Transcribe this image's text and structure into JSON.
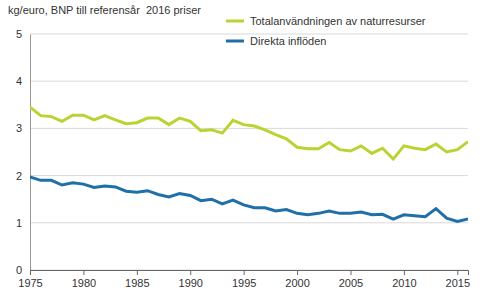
{
  "chart_data": {
    "type": "line",
    "ylabel": "kg/euro, BNP till referensår  2016 priser",
    "x": [
      1975,
      1976,
      1977,
      1978,
      1979,
      1980,
      1981,
      1982,
      1983,
      1984,
      1985,
      1986,
      1987,
      1988,
      1989,
      1990,
      1991,
      1992,
      1993,
      1994,
      1995,
      1996,
      1997,
      1998,
      1999,
      2000,
      2001,
      2002,
      2003,
      2004,
      2005,
      2006,
      2007,
      2008,
      2009,
      2010,
      2011,
      2012,
      2013,
      2014,
      2015,
      2016
    ],
    "series": [
      {
        "name": "Totalanvändningen av naturresurser",
        "color": "#b8d433",
        "values": [
          3.45,
          3.27,
          3.25,
          3.15,
          3.28,
          3.28,
          3.18,
          3.27,
          3.18,
          3.1,
          3.12,
          3.22,
          3.22,
          3.08,
          3.22,
          3.15,
          2.95,
          2.97,
          2.9,
          3.17,
          3.08,
          3.05,
          2.97,
          2.87,
          2.78,
          2.6,
          2.57,
          2.57,
          2.7,
          2.55,
          2.52,
          2.63,
          2.47,
          2.58,
          2.35,
          2.63,
          2.58,
          2.55,
          2.67,
          2.5,
          2.55,
          2.72
        ]
      },
      {
        "name": "Direkta inflöden",
        "color": "#1f6fa8",
        "values": [
          1.97,
          1.9,
          1.9,
          1.8,
          1.85,
          1.82,
          1.75,
          1.78,
          1.76,
          1.67,
          1.65,
          1.68,
          1.6,
          1.55,
          1.62,
          1.58,
          1.47,
          1.5,
          1.4,
          1.48,
          1.38,
          1.32,
          1.32,
          1.25,
          1.28,
          1.2,
          1.17,
          1.2,
          1.25,
          1.2,
          1.2,
          1.23,
          1.17,
          1.18,
          1.08,
          1.17,
          1.15,
          1.13,
          1.3,
          1.1,
          1.03,
          1.08
        ]
      }
    ],
    "xlim": [
      1975,
      2016
    ],
    "xticks": [
      1975,
      1980,
      1985,
      1990,
      1995,
      2000,
      2005,
      2010,
      2015
    ],
    "ylim": [
      0,
      5
    ],
    "yticks": [
      0,
      1,
      2,
      3,
      4,
      5
    ],
    "grid": true,
    "legend": "upper right",
    "marker": "none",
    "line_style": "solid"
  }
}
